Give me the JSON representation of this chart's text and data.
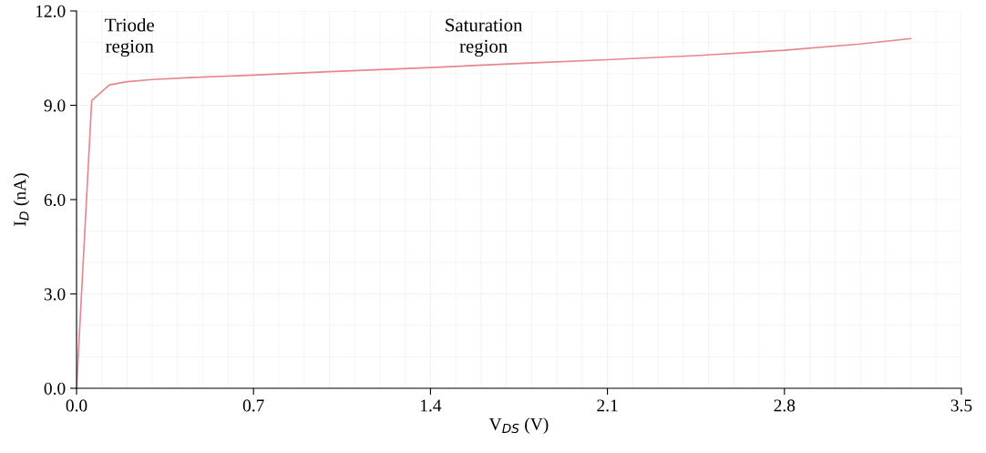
{
  "chart_data": {
    "type": "line",
    "xlabel": "V$_{DS}$ (V)",
    "ylabel": "I$_{D}$ (nA)",
    "x": [
      0,
      0.06,
      0.13,
      0.2,
      0.3,
      0.45,
      0.7,
      1.0,
      1.4,
      1.75,
      2.1,
      2.45,
      2.8,
      3.1,
      3.3
    ],
    "series": [
      {
        "color": "#e8868e",
        "values": [
          0,
          9.15,
          9.65,
          9.75,
          9.82,
          9.88,
          9.96,
          10.07,
          10.2,
          10.33,
          10.45,
          10.58,
          10.75,
          10.95,
          11.12
        ]
      }
    ],
    "xlim": [
      0,
      3.5
    ],
    "xticks": [
      {
        "value": 0,
        "label": "0.0"
      },
      0.7,
      1.4,
      2.1,
      2.8,
      3.5
    ],
    "ylim": [
      0,
      12
    ],
    "yticks": [
      {
        "value": 0,
        "label": "0.0"
      },
      {
        "value": 3,
        "label": "3.0"
      },
      {
        "value": 6,
        "label": "6.0"
      },
      {
        "value": 9,
        "label": "9.0"
      },
      {
        "value": 12,
        "label": "12.0"
      }
    ],
    "grid": true,
    "marker": "none",
    "line_style": "solid",
    "annotations": [
      "Triode\nregion",
      "Saturation\nregion"
    ]
  }
}
